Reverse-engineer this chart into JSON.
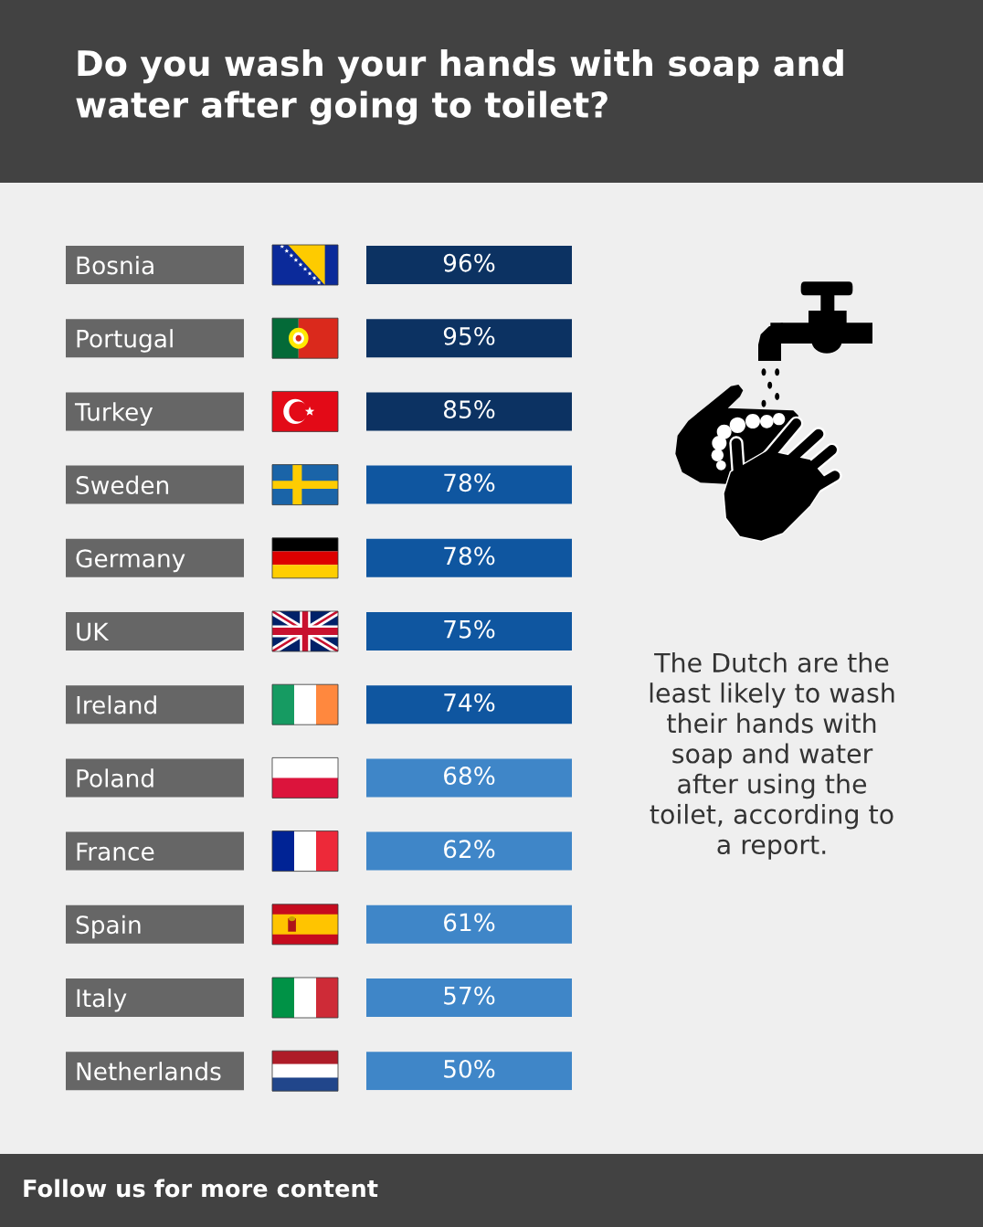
{
  "chart_data": {
    "type": "heatmap",
    "title": "Do you wash your hands with soap and\nwater after going to toilet?",
    "categories": [
      null
    ],
    "y_categories": [
      "Bosnia",
      "Portugal",
      "Turkey",
      "Sweden",
      "Germany",
      "UK",
      "Ireland",
      "Poland",
      "France",
      "Spain",
      "Italy",
      "Netherlands"
    ],
    "cells": [
      [
        96
      ],
      [
        95
      ],
      [
        85
      ],
      [
        78
      ],
      [
        78
      ],
      [
        75
      ],
      [
        74
      ],
      [
        68
      ],
      [
        62
      ],
      [
        61
      ],
      [
        57
      ],
      [
        50
      ]
    ],
    "cell_labels": [
      [
        "96%"
      ],
      [
        "95%"
      ],
      [
        "85%"
      ],
      [
        "78%"
      ],
      [
        "78%"
      ],
      [
        "75%"
      ],
      [
        "74%"
      ],
      [
        "68%"
      ],
      [
        "62%"
      ],
      [
        "61%"
      ],
      [
        "57%"
      ],
      [
        "50%"
      ]
    ],
    "colors": [
      "#0c3262",
      "#0c3262",
      "#0c3262",
      "#0f56a0",
      "#0f56a0",
      "#0f56a0",
      "#0f56a0",
      "#3f86c8",
      "#3f86c8",
      "#3f86c8",
      "#3f86c8",
      "#3f86c8"
    ],
    "tick_labels": "y",
    "annotations": [
      "The Dutch are the\nleast likely to wash\ntheir hands with\nsoap and water\nafter using the\ntoilet, according to\na report.",
      "Follow us for more content"
    ]
  }
}
